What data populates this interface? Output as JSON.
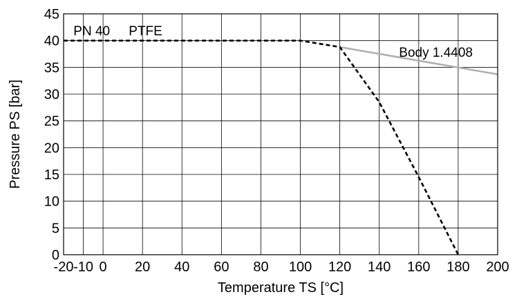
{
  "chart_data": {
    "type": "line",
    "xlabel": "Temperature TS [°C]",
    "ylabel": "Pressure PS [bar]",
    "xlim": [
      -20,
      200
    ],
    "ylim": [
      0,
      45
    ],
    "x_ticks": [
      -20,
      -10,
      0,
      20,
      40,
      60,
      80,
      100,
      120,
      140,
      160,
      180,
      200
    ],
    "y_ticks": [
      0,
      5,
      10,
      15,
      20,
      25,
      30,
      35,
      40,
      45
    ],
    "grid": true,
    "series": [
      {
        "name": "PTFE",
        "style": "dashed",
        "color": "#000000",
        "x": [
          -20,
          100,
          120,
          140,
          160,
          180
        ],
        "y": [
          40,
          40,
          38.8,
          28.5,
          14.5,
          0
        ]
      },
      {
        "name": "Body 1.4408",
        "style": "solid",
        "color": "#b0b0b0",
        "x": [
          120,
          200
        ],
        "y": [
          38.8,
          33.7
        ]
      }
    ],
    "annotations": [
      {
        "text": "PN 40",
        "x": -15,
        "y": 41
      },
      {
        "text": "PTFE",
        "x": 13,
        "y": 41
      },
      {
        "text": "Body 1.4408",
        "x": 150,
        "y": 37
      }
    ]
  }
}
